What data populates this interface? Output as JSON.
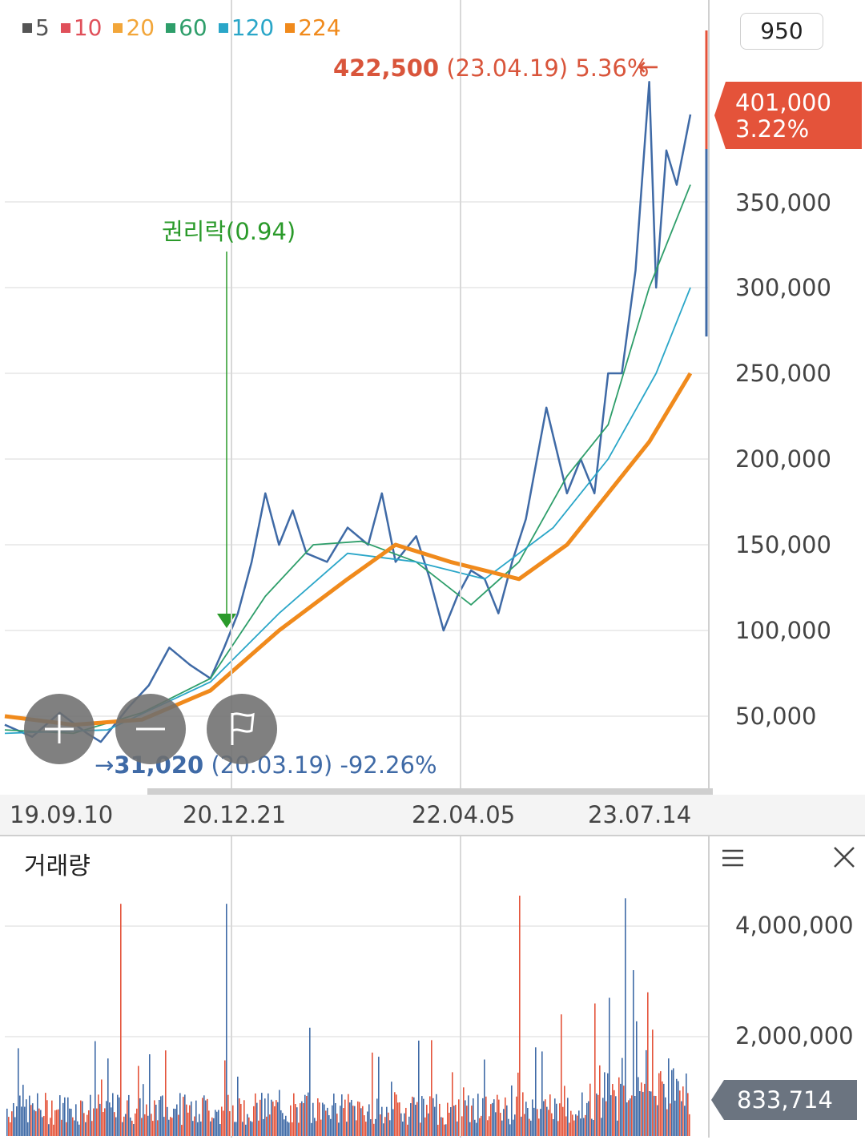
{
  "legend": [
    {
      "label": "5",
      "color": "#555555"
    },
    {
      "label": "10",
      "color": "#e0505a"
    },
    {
      "label": "20",
      "color": "#f2a63a"
    },
    {
      "label": "60",
      "color": "#2e9e6a"
    },
    {
      "label": "120",
      "color": "#2aa6c8"
    },
    {
      "label": "224",
      "color": "#f08a1c"
    }
  ],
  "top_right_value": "950",
  "current_price": {
    "price": "401,000",
    "change": "3.22%"
  },
  "high_marker": {
    "value": "422,500",
    "date": "(23.04.19)",
    "pct": "5.36%",
    "arrow": "←"
  },
  "low_marker": {
    "arrow": "→",
    "value": "31,020",
    "date": "(20.03.19)",
    "pct": "-92.26%"
  },
  "event_marker": {
    "label": "권리락(0.94)"
  },
  "volume": {
    "title": "거래량",
    "current": "833,714",
    "yticks": [
      "4,000,000",
      "2,000,000"
    ]
  },
  "icons": {
    "zoom_in": "plus-icon",
    "zoom_out": "minus-icon",
    "marker": "flag-icon",
    "menu": "menu-icon",
    "close": "close-icon"
  },
  "chart_data": {
    "type": "line",
    "yticks": [
      "350,000",
      "300,000",
      "250,000",
      "200,000",
      "150,000",
      "100,000",
      "50,000"
    ],
    "xticks": [
      "19.09.10",
      "20.12.21",
      "22.04.05",
      "23.07.14"
    ],
    "ylim": [
      0,
      440000
    ],
    "series": [
      {
        "name": "5",
        "color": "#3f6aa6",
        "values": [
          [
            0,
            45000
          ],
          [
            0.04,
            38000
          ],
          [
            0.08,
            52000
          ],
          [
            0.12,
            40000
          ],
          [
            0.14,
            35000
          ],
          [
            0.18,
            55000
          ],
          [
            0.21,
            68000
          ],
          [
            0.24,
            90000
          ],
          [
            0.27,
            80000
          ],
          [
            0.3,
            72000
          ],
          [
            0.32,
            90000
          ],
          [
            0.34,
            110000
          ],
          [
            0.36,
            140000
          ],
          [
            0.38,
            180000
          ],
          [
            0.4,
            150000
          ],
          [
            0.42,
            170000
          ],
          [
            0.44,
            145000
          ],
          [
            0.47,
            140000
          ],
          [
            0.5,
            160000
          ],
          [
            0.53,
            150000
          ],
          [
            0.55,
            180000
          ],
          [
            0.57,
            140000
          ],
          [
            0.6,
            155000
          ],
          [
            0.62,
            130000
          ],
          [
            0.64,
            100000
          ],
          [
            0.66,
            120000
          ],
          [
            0.68,
            135000
          ],
          [
            0.7,
            130000
          ],
          [
            0.72,
            110000
          ],
          [
            0.74,
            140000
          ],
          [
            0.76,
            165000
          ],
          [
            0.79,
            230000
          ],
          [
            0.82,
            180000
          ],
          [
            0.84,
            200000
          ],
          [
            0.86,
            180000
          ],
          [
            0.88,
            250000
          ],
          [
            0.9,
            250000
          ],
          [
            0.92,
            310000
          ],
          [
            0.94,
            420000
          ],
          [
            0.95,
            300000
          ],
          [
            0.965,
            380000
          ],
          [
            0.98,
            360000
          ],
          [
            1,
            401000
          ]
        ]
      },
      {
        "name": "60",
        "color": "#2e9e6a",
        "values": [
          [
            0,
            42000
          ],
          [
            0.1,
            40000
          ],
          [
            0.2,
            52000
          ],
          [
            0.3,
            72000
          ],
          [
            0.38,
            120000
          ],
          [
            0.45,
            150000
          ],
          [
            0.52,
            152000
          ],
          [
            0.6,
            140000
          ],
          [
            0.68,
            115000
          ],
          [
            0.75,
            140000
          ],
          [
            0.82,
            190000
          ],
          [
            0.88,
            220000
          ],
          [
            0.94,
            300000
          ],
          [
            1,
            360000
          ]
        ]
      },
      {
        "name": "120",
        "color": "#2aa6c8",
        "values": [
          [
            0,
            40000
          ],
          [
            0.15,
            42000
          ],
          [
            0.3,
            70000
          ],
          [
            0.4,
            110000
          ],
          [
            0.5,
            145000
          ],
          [
            0.6,
            140000
          ],
          [
            0.7,
            130000
          ],
          [
            0.8,
            160000
          ],
          [
            0.88,
            200000
          ],
          [
            0.95,
            250000
          ],
          [
            1,
            300000
          ]
        ]
      },
      {
        "name": "224",
        "color": "#f08a1c",
        "values": [
          [
            0,
            50000
          ],
          [
            0.1,
            45000
          ],
          [
            0.2,
            48000
          ],
          [
            0.3,
            65000
          ],
          [
            0.4,
            100000
          ],
          [
            0.5,
            130000
          ],
          [
            0.57,
            150000
          ],
          [
            0.65,
            140000
          ],
          [
            0.75,
            130000
          ],
          [
            0.82,
            150000
          ],
          [
            0.88,
            180000
          ],
          [
            0.94,
            210000
          ],
          [
            1,
            250000
          ]
        ]
      }
    ],
    "volume_max": 4500000
  }
}
